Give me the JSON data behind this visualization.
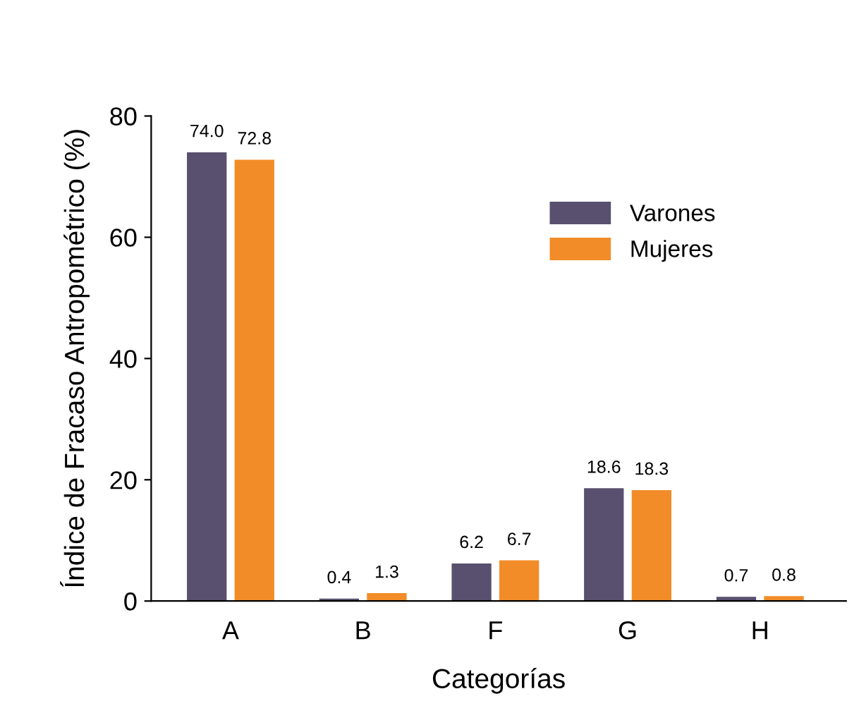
{
  "chart_data": {
    "type": "bar",
    "xlabel": "Categorías",
    "ylabel": "Índice de Fracaso Antropométrico (%)",
    "categories": [
      "A",
      "B",
      "F",
      "G",
      "H"
    ],
    "series": [
      {
        "name": "Varones",
        "color": "#58506e",
        "values": [
          74.0,
          0.4,
          6.2,
          18.6,
          0.7
        ],
        "value_labels": [
          "74.0",
          "0.4",
          "6.2",
          "18.6",
          "0.7"
        ]
      },
      {
        "name": "Mujeres",
        "color": "#f28c28",
        "values": [
          72.8,
          1.3,
          6.7,
          18.3,
          0.8
        ],
        "value_labels": [
          "72.8",
          "1.3",
          "6.7",
          "18.3",
          "0.8"
        ]
      }
    ],
    "ylim": [
      0,
      80
    ],
    "yticks": [
      0,
      20,
      40,
      60,
      80
    ],
    "grid": false,
    "legend": "top right"
  }
}
